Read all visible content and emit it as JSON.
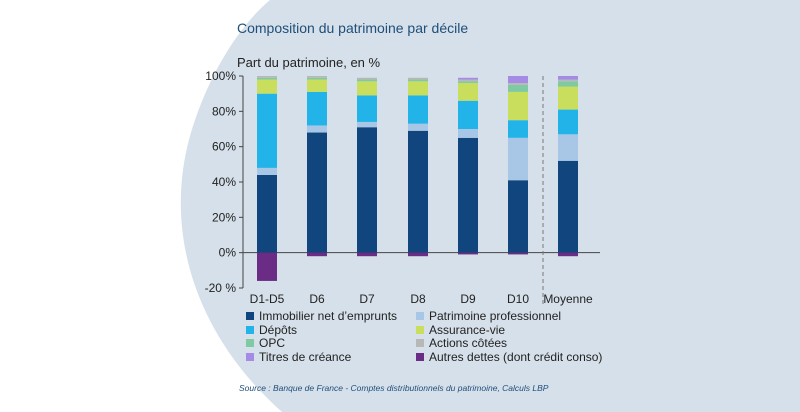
{
  "chart_data": {
    "type": "bar",
    "stacked": true,
    "title": "Composition du patrimoine par décile",
    "ylabel": "Part du patrimoine, en %",
    "xlabel": "",
    "ylim": [
      -20,
      100
    ],
    "yticks": [
      "100%",
      "80%",
      "60%",
      "40%",
      "20%",
      "0%",
      "-20 %"
    ],
    "ytick_values": [
      100,
      80,
      60,
      40,
      20,
      0,
      -20
    ],
    "grid": false,
    "legend_position": "bottom",
    "categories": [
      "D1-D5",
      "D6",
      "D7",
      "D8",
      "D9",
      "D10",
      "Moyenne"
    ],
    "separator_before_category": "Moyenne",
    "series": [
      {
        "name": "Immobilier net d’emprunts",
        "color": "#10457e",
        "values": [
          44,
          68,
          71,
          69,
          65,
          41,
          52
        ]
      },
      {
        "name": "Patrimoine professionnel",
        "color": "#a8c7e6",
        "values": [
          4,
          4,
          3,
          4,
          5,
          24,
          15
        ]
      },
      {
        "name": "Dépôts",
        "color": "#22b4e8",
        "values": [
          42,
          19,
          15,
          16,
          16,
          10,
          14
        ]
      },
      {
        "name": "Assurance-vie",
        "color": "#c9de5c",
        "values": [
          8,
          7,
          8,
          8,
          10,
          16,
          13
        ]
      },
      {
        "name": "OPC",
        "color": "#7fc9a3",
        "values": [
          1,
          1,
          1,
          1,
          1,
          4,
          3
        ]
      },
      {
        "name": "Actions côtées",
        "color": "#b8b8b8",
        "values": [
          1,
          1,
          1,
          1,
          1,
          1,
          1
        ]
      },
      {
        "name": "Titres de créance",
        "color": "#a58ae6",
        "values": [
          0,
          0,
          0,
          0,
          1,
          4,
          2
        ]
      },
      {
        "name": "Autres dettes (dont crédit conso)",
        "color": "#6b2c85",
        "values": [
          -16,
          -2,
          -2,
          -2,
          -1,
          -1,
          -2
        ]
      }
    ]
  },
  "source": "Source : Banque de France - Comptes distributionnels du patrimoine, Calculs LBP",
  "colors": {
    "background_shape": "#d6e0ea",
    "panel": "#ffffff",
    "axis": "#444444"
  }
}
